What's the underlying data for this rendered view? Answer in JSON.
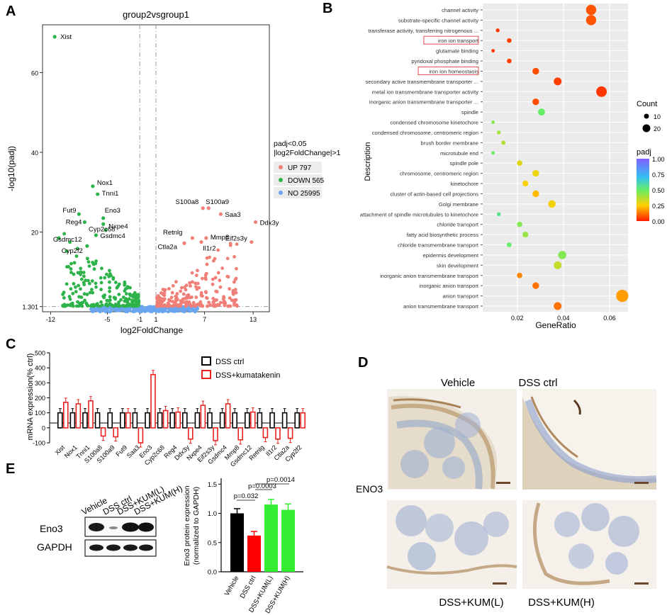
{
  "panel_labels": {
    "a": "A",
    "b": "B",
    "c": "C",
    "d": "D",
    "e": "E"
  },
  "panel_a": {
    "title": "group2vsgroup1",
    "ylabel": "-log10(padj)",
    "xlabel": "log2FoldChange",
    "yticks": [
      "1.301",
      "20",
      "40",
      "60"
    ],
    "xticks": [
      "-12",
      "-5",
      "-1",
      "1",
      "7",
      "13"
    ],
    "legend_title": [
      "padj<0.05",
      "|log2FoldChange|>1"
    ],
    "legend": [
      {
        "label": "UP 797",
        "color": "#f07f78"
      },
      {
        "label": "DOWN 565",
        "color": "#2db34a"
      },
      {
        "label": "NO 25995",
        "color": "#6aa6f0"
      }
    ],
    "gene_labels": [
      "Xist",
      "Nox1",
      "Tnni1",
      "Fut9",
      "Reg4",
      "Eno3",
      "Cyp2c68",
      "Nxpe4",
      "Gsdmc4",
      "Gsdmc12",
      "Cyp2f2",
      "S100a8",
      "S100a9",
      "Saa3",
      "Ddx3y",
      "Eif2s3y",
      "Retnlg",
      "Mmp8",
      "Ctla2a",
      "Il1r2"
    ]
  },
  "chart_data": [
    {
      "type": "scatter",
      "title": "group2vsgroup1",
      "xlabel": "log2FoldChange",
      "ylabel": "-log10(padj)",
      "xlim": [
        -13,
        15
      ],
      "ylim": [
        0,
        72
      ],
      "labeled_points": [
        {
          "gene": "Xist",
          "x": -11.5,
          "y": 69
        },
        {
          "gene": "Nox1",
          "x": -6.8,
          "y": 31.5
        },
        {
          "gene": "Tnni1",
          "x": -6.2,
          "y": 29.5
        },
        {
          "gene": "Fut9",
          "x": -8.5,
          "y": 24.5
        },
        {
          "gene": "Reg4",
          "x": -7.8,
          "y": 22.5
        },
        {
          "gene": "Eno3",
          "x": -5.5,
          "y": 23.5
        },
        {
          "gene": "Cyp2c68",
          "x": -5.5,
          "y": 22
        },
        {
          "gene": "Nxpe4",
          "x": -5.2,
          "y": 20.5
        },
        {
          "gene": "Gsdmc4",
          "x": -6.4,
          "y": 19.2
        },
        {
          "gene": "Gsdmc12",
          "x": -11,
          "y": 18.5
        },
        {
          "gene": "Cyp2f2",
          "x": -7.5,
          "y": 16.5
        },
        {
          "gene": "S100a8",
          "x": 6.8,
          "y": 26
        },
        {
          "gene": "S100a9",
          "x": 7.5,
          "y": 26
        },
        {
          "gene": "Saa3",
          "x": 9,
          "y": 24.5
        },
        {
          "gene": "Ddx3y",
          "x": 13.3,
          "y": 22.5
        },
        {
          "gene": "Eif2s3y",
          "x": 12.8,
          "y": 17.5
        },
        {
          "gene": "Retnlg",
          "x": 5.5,
          "y": 18.5
        },
        {
          "gene": "Mmp8",
          "x": 7.2,
          "y": 18.5
        },
        {
          "gene": "Ctla2a",
          "x": 4.5,
          "y": 17.2
        },
        {
          "gene": "Il1r2",
          "x": 6.6,
          "y": 17.5
        }
      ],
      "legend": [
        "UP 797",
        "DOWN 565",
        "NO 25995"
      ],
      "threshold_lines": {
        "y": 1.301,
        "x": [
          -1,
          1
        ]
      }
    },
    {
      "type": "scatter",
      "subtype": "go-dotplot",
      "xlabel": "GeneRatio",
      "ylabel": "Description",
      "xticks": [
        "0.02",
        "0.04",
        "0.06"
      ],
      "xlim": [
        0.005,
        0.068
      ],
      "size_legend": {
        "title": "Count",
        "values": [
          10,
          20
        ]
      },
      "color_legend": {
        "title": "padj",
        "ticks": [
          "0.00",
          "0.25",
          "0.50",
          "0.75",
          "1.00"
        ]
      },
      "categories": [
        {
          "term": "channel activity",
          "ratio": 0.052,
          "count": 20,
          "padj": 0.08,
          "boxed": false
        },
        {
          "term": "substrate-specific channel activity",
          "ratio": 0.052,
          "count": 20,
          "padj": 0.08,
          "boxed": false
        },
        {
          "term": "transferase activity, transferring nitrogenous ...",
          "ratio": 0.0115,
          "count": 4,
          "padj": 0.04,
          "boxed": false
        },
        {
          "term": "iron ion transport",
          "ratio": 0.0165,
          "count": 6,
          "padj": 0.05,
          "boxed": true
        },
        {
          "term": "glutamate binding",
          "ratio": 0.0095,
          "count": 3,
          "padj": 0.04,
          "boxed": false
        },
        {
          "term": "pyridoxal phosphate binding",
          "ratio": 0.0165,
          "count": 6,
          "padj": 0.05,
          "boxed": false
        },
        {
          "term": "iron ion homeostasis",
          "ratio": 0.028,
          "count": 11,
          "padj": 0.07,
          "boxed": true
        },
        {
          "term": "secondary active transmembrane transporter ...",
          "ratio": 0.0375,
          "count": 14,
          "padj": 0.05,
          "boxed": false
        },
        {
          "term": "metal ion transmembrane transporter activity",
          "ratio": 0.0565,
          "count": 21,
          "padj": 0.04,
          "boxed": false
        },
        {
          "term": "inorganic anion transmembrane transporter ...",
          "ratio": 0.028,
          "count": 11,
          "padj": 0.07,
          "boxed": false
        },
        {
          "term": "spindle",
          "ratio": 0.0305,
          "count": 12,
          "padj": 0.5,
          "boxed": false
        },
        {
          "term": "condensed chromosome kinetochore",
          "ratio": 0.0095,
          "count": 3,
          "padj": 0.45,
          "boxed": false
        },
        {
          "term": "condensed chromosome, centromeric region",
          "ratio": 0.012,
          "count": 4,
          "padj": 0.4,
          "boxed": false
        },
        {
          "term": "brush border membrane",
          "ratio": 0.014,
          "count": 5,
          "padj": 0.38,
          "boxed": false
        },
        {
          "term": "microtubule end",
          "ratio": 0.0095,
          "count": 3,
          "padj": 0.5,
          "boxed": false
        },
        {
          "term": "spindle pole",
          "ratio": 0.021,
          "count": 8,
          "padj": 0.3,
          "boxed": false
        },
        {
          "term": "chromosome, centromeric region",
          "ratio": 0.028,
          "count": 11,
          "padj": 0.28,
          "boxed": false
        },
        {
          "term": "kinetochore",
          "ratio": 0.0235,
          "count": 9,
          "padj": 0.26,
          "boxed": false
        },
        {
          "term": "cluster of actin-based cell projections",
          "ratio": 0.028,
          "count": 11,
          "padj": 0.22,
          "boxed": false
        },
        {
          "term": "Golgi membrane",
          "ratio": 0.035,
          "count": 13,
          "padj": 0.27,
          "boxed": false
        },
        {
          "term": "attachment of spindle microtubules to kinetochore",
          "ratio": 0.012,
          "count": 4,
          "padj": 0.55,
          "boxed": false
        },
        {
          "term": "chloride transport",
          "ratio": 0.021,
          "count": 8,
          "padj": 0.45,
          "boxed": false
        },
        {
          "term": "fatty acid biosynthetic process",
          "ratio": 0.0235,
          "count": 9,
          "padj": 0.42,
          "boxed": false
        },
        {
          "term": "chloride transmembrane transport",
          "ratio": 0.0165,
          "count": 6,
          "padj": 0.5,
          "boxed": false
        },
        {
          "term": "epidermis development",
          "ratio": 0.0395,
          "count": 15,
          "padj": 0.45,
          "boxed": false
        },
        {
          "term": "skin development",
          "ratio": 0.0375,
          "count": 14,
          "padj": 0.35,
          "boxed": false
        },
        {
          "term": "inorganic anion transmembrane transport",
          "ratio": 0.021,
          "count": 8,
          "padj": 0.15,
          "boxed": false
        },
        {
          "term": "inorganic anion transport",
          "ratio": 0.028,
          "count": 11,
          "padj": 0.12,
          "boxed": false
        },
        {
          "term": "anion transport",
          "ratio": 0.0655,
          "count": 25,
          "padj": 0.18,
          "boxed": false
        },
        {
          "term": "anion transmembrane transport",
          "ratio": 0.0375,
          "count": 14,
          "padj": 0.12,
          "boxed": false
        }
      ]
    },
    {
      "type": "bar",
      "ylabel": "mRNA expression(% ctrl)",
      "yticks": [
        "-100",
        "0",
        "100",
        "200",
        "300",
        "400",
        "500"
      ],
      "ylim": [
        -100,
        500
      ],
      "categories": [
        "Xist",
        "Nox1",
        "Tnni1",
        "S100a8",
        "S100a9",
        "Fut9",
        "Saa3",
        "Eno3",
        "Cyp2c68",
        "Reg4",
        "Ddx3y",
        "Nxpe4",
        "Eif2s3y",
        "Gsdmc4",
        "Mmp8",
        "Gsdmc12",
        "Retnlg",
        "Il1r2",
        "Ctla2a",
        "Cyp2f2"
      ],
      "series": [
        {
          "name": "DSS ctrl",
          "color": "#000000",
          "values": [
            100,
            100,
            100,
            100,
            100,
            100,
            100,
            100,
            100,
            100,
            100,
            100,
            100,
            100,
            100,
            100,
            100,
            100,
            100,
            100
          ]
        },
        {
          "name": "DSS+kumatakenin",
          "color": "#e8231f",
          "values": [
            170,
            160,
            180,
            -55,
            -60,
            100,
            -100,
            355,
            115,
            105,
            -75,
            150,
            -85,
            160,
            -80,
            105,
            -65,
            -75,
            -70,
            100
          ]
        }
      ]
    },
    {
      "type": "bar",
      "ylabel": "Eno3 protein expression (normalized to GAPDH)",
      "yticks": [
        "0.0",
        "0.5",
        "1.0",
        "1.5"
      ],
      "ylim": [
        0,
        1.6
      ],
      "categories": [
        "Vehicle",
        "DSS ctrl",
        "DSS+KUM(L)",
        "DSS+KUM(H)"
      ],
      "values": [
        1.0,
        0.62,
        1.15,
        1.06
      ],
      "colors": [
        "#000000",
        "#ff0000",
        "#33ee33",
        "#33ee33"
      ],
      "annotations": [
        "p=0.032",
        "p=0.0003",
        "p=0.0014"
      ]
    }
  ],
  "panel_b": {
    "ylabel": "Description",
    "xlabel": "GeneRatio",
    "count_title": "Count",
    "count_values": [
      "10",
      "20"
    ],
    "padj_title": "padj",
    "padj_ticks": [
      "1.00",
      "0.75",
      "0.50",
      "0.25",
      "0.00"
    ]
  },
  "panel_c": {
    "legend": [
      "DSS ctrl",
      "DSS+kumatakenin"
    ],
    "ylabel": "mRNA expression(% ctrl)"
  },
  "panel_d": {
    "col_labels": [
      "Vehicle",
      "DSS ctrl"
    ],
    "row_label": "ENO3",
    "bottom_labels": [
      "DSS+KUM(L)",
      "DSS+KUM(H)"
    ]
  },
  "panel_e": {
    "lane_labels": [
      "Vehicle",
      "DSS ctrl",
      "DSS+KUM(L)",
      "DSS+KUM(H)"
    ],
    "band_labels": [
      "Eno3",
      "GAPDH"
    ],
    "ylabel_lines": [
      "Eno3 protein expression",
      "(normalized to GAPDH)"
    ],
    "pvalues": [
      "p=0.032",
      "p=0.0003",
      "p=0.0014"
    ]
  }
}
